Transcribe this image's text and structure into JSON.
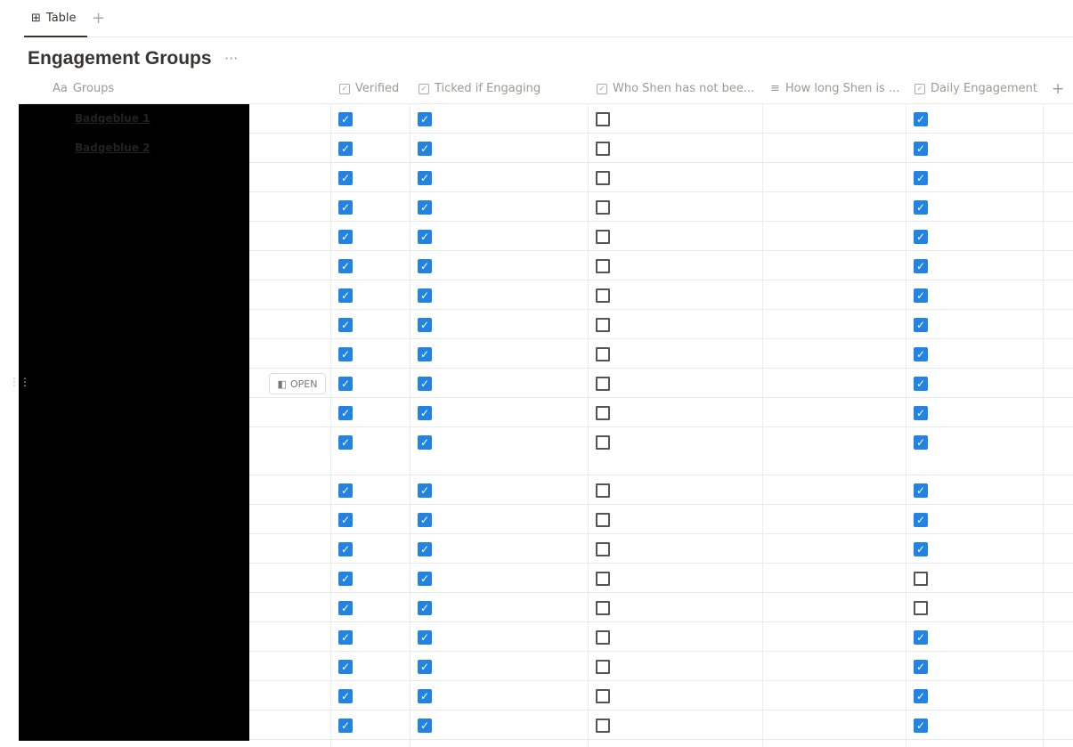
{
  "tabs": {
    "active": "Table",
    "add": "+"
  },
  "title": "Engagement Groups",
  "title_menu": "···",
  "columns": [
    {
      "label": "Groups",
      "icon": "Aa"
    },
    {
      "label": "Verified",
      "icon": "checkbox-icon"
    },
    {
      "label": "Ticked if Engaging",
      "icon": "checkbox-icon"
    },
    {
      "label": "Who Shen has not bee...",
      "icon": "checkbox-icon"
    },
    {
      "label": "How long Shen is ...",
      "icon": "text-lines-icon"
    },
    {
      "label": "Daily Engagement",
      "icon": "checkbox-icon"
    }
  ],
  "add_column": "+",
  "open_label": "OPEN",
  "accent": "#2383e2",
  "rows": [
    {
      "name": "Badgeblue 1",
      "verified": true,
      "engaging": true,
      "not_been": false,
      "daily": true
    },
    {
      "name": "Badgeblue 2",
      "verified": true,
      "engaging": true,
      "not_been": false,
      "daily": true
    },
    {
      "name": "",
      "verified": true,
      "engaging": true,
      "not_been": false,
      "daily": true
    },
    {
      "name": "",
      "verified": true,
      "engaging": true,
      "not_been": false,
      "daily": true
    },
    {
      "name": "",
      "verified": true,
      "engaging": true,
      "not_been": false,
      "daily": true
    },
    {
      "name": "",
      "verified": true,
      "engaging": true,
      "not_been": false,
      "daily": true
    },
    {
      "name": "",
      "verified": true,
      "engaging": true,
      "not_been": false,
      "daily": true
    },
    {
      "name": "",
      "verified": true,
      "engaging": true,
      "not_been": false,
      "daily": true
    },
    {
      "name": "",
      "verified": true,
      "engaging": true,
      "not_been": false,
      "daily": true
    },
    {
      "name": "",
      "verified": true,
      "engaging": true,
      "not_been": false,
      "daily": true
    },
    {
      "name": "",
      "verified": true,
      "engaging": true,
      "not_been": false,
      "daily": true
    },
    {
      "name": "",
      "verified": true,
      "engaging": true,
      "not_been": false,
      "daily": true
    },
    {
      "name": "",
      "verified": true,
      "engaging": true,
      "not_been": false,
      "daily": true
    },
    {
      "name": "",
      "verified": true,
      "engaging": true,
      "not_been": false,
      "daily": true
    },
    {
      "name": "",
      "verified": true,
      "engaging": true,
      "not_been": false,
      "daily": true
    },
    {
      "name": "",
      "verified": true,
      "engaging": true,
      "not_been": false,
      "daily": false
    },
    {
      "name": "",
      "verified": true,
      "engaging": true,
      "not_been": false,
      "daily": false
    },
    {
      "name": "",
      "verified": true,
      "engaging": true,
      "not_been": false,
      "daily": true
    },
    {
      "name": "",
      "verified": true,
      "engaging": true,
      "not_been": false,
      "daily": true
    },
    {
      "name": "",
      "verified": true,
      "engaging": true,
      "not_been": false,
      "daily": true
    },
    {
      "name": "",
      "verified": true,
      "engaging": true,
      "not_been": false,
      "daily": true
    }
  ]
}
